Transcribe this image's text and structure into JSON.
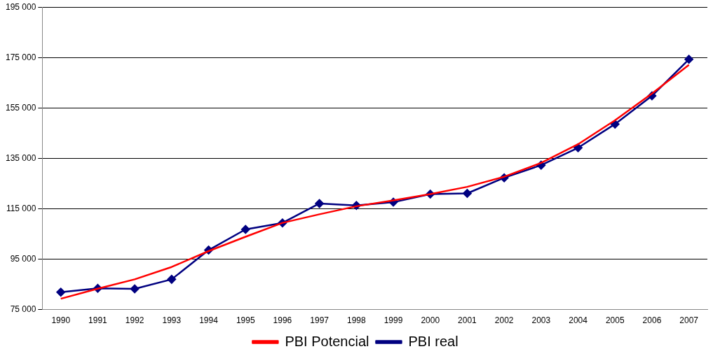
{
  "chart_data": {
    "type": "line",
    "categories": [
      "1990",
      "1991",
      "1992",
      "1993",
      "1994",
      "1995",
      "1996",
      "1997",
      "1998",
      "1999",
      "2000",
      "2001",
      "2002",
      "2003",
      "2004",
      "2005",
      "2006",
      "2007"
    ],
    "series": [
      {
        "name": "PBI real",
        "color": "#000080",
        "marker": "diamond",
        "values": [
          81900,
          83400,
          83200,
          87000,
          98600,
          106800,
          109400,
          117100,
          116300,
          117600,
          120800,
          121100,
          127300,
          132300,
          139200,
          148600,
          159800,
          174300
        ]
      },
      {
        "name": "PBI Potencial",
        "color": "#ff0000",
        "marker": "none",
        "values": [
          79300,
          83300,
          87000,
          91900,
          98200,
          103900,
          109400,
          112800,
          116000,
          118300,
          120800,
          123700,
          127700,
          133200,
          140600,
          150100,
          160700,
          172100
        ]
      }
    ],
    "ylim": [
      75000,
      195000
    ],
    "yticks": [
      {
        "value": 75000,
        "label": "75 000"
      },
      {
        "value": 95000,
        "label": "95 000"
      },
      {
        "value": 115000,
        "label": "115 000"
      },
      {
        "value": 135000,
        "label": "135 000"
      },
      {
        "value": 155000,
        "label": "155 000"
      },
      {
        "value": 175000,
        "label": "175 000"
      },
      {
        "value": 195000,
        "label": "195 000"
      }
    ],
    "grid": "y",
    "legend": "bottom"
  }
}
